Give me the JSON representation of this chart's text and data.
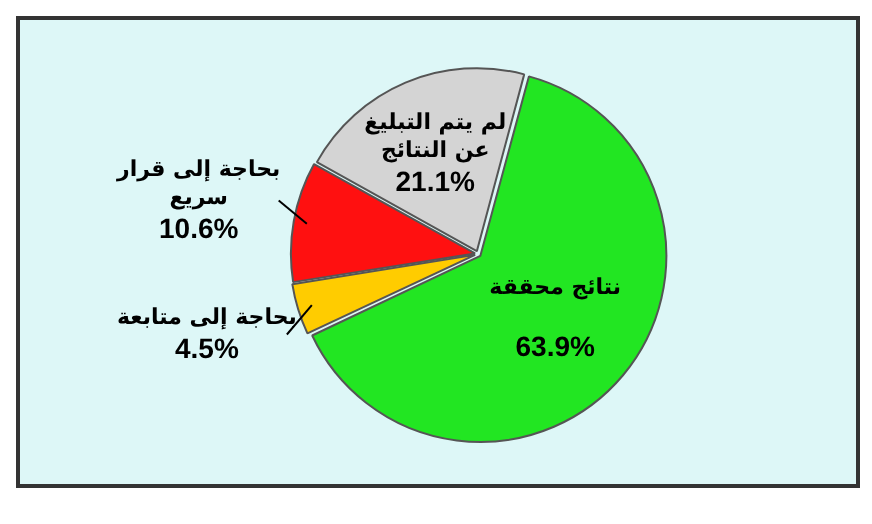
{
  "chart_data": {
    "type": "pie",
    "categories": [
      "نتائج محققة",
      "بحاجة إلى متابعة",
      "بحاجة إلى قرار سريع",
      "لم يتم التبليغ عن النتائج"
    ],
    "values": [
      63.9,
      4.5,
      10.6,
      21.1
    ],
    "colors": [
      "#22e622",
      "#ffcc00",
      "#ff1010",
      "#d4d4d4"
    ],
    "value_labels": [
      "63.9%",
      "4.5%",
      "10.6%",
      "21.1%"
    ],
    "legend": false
  }
}
